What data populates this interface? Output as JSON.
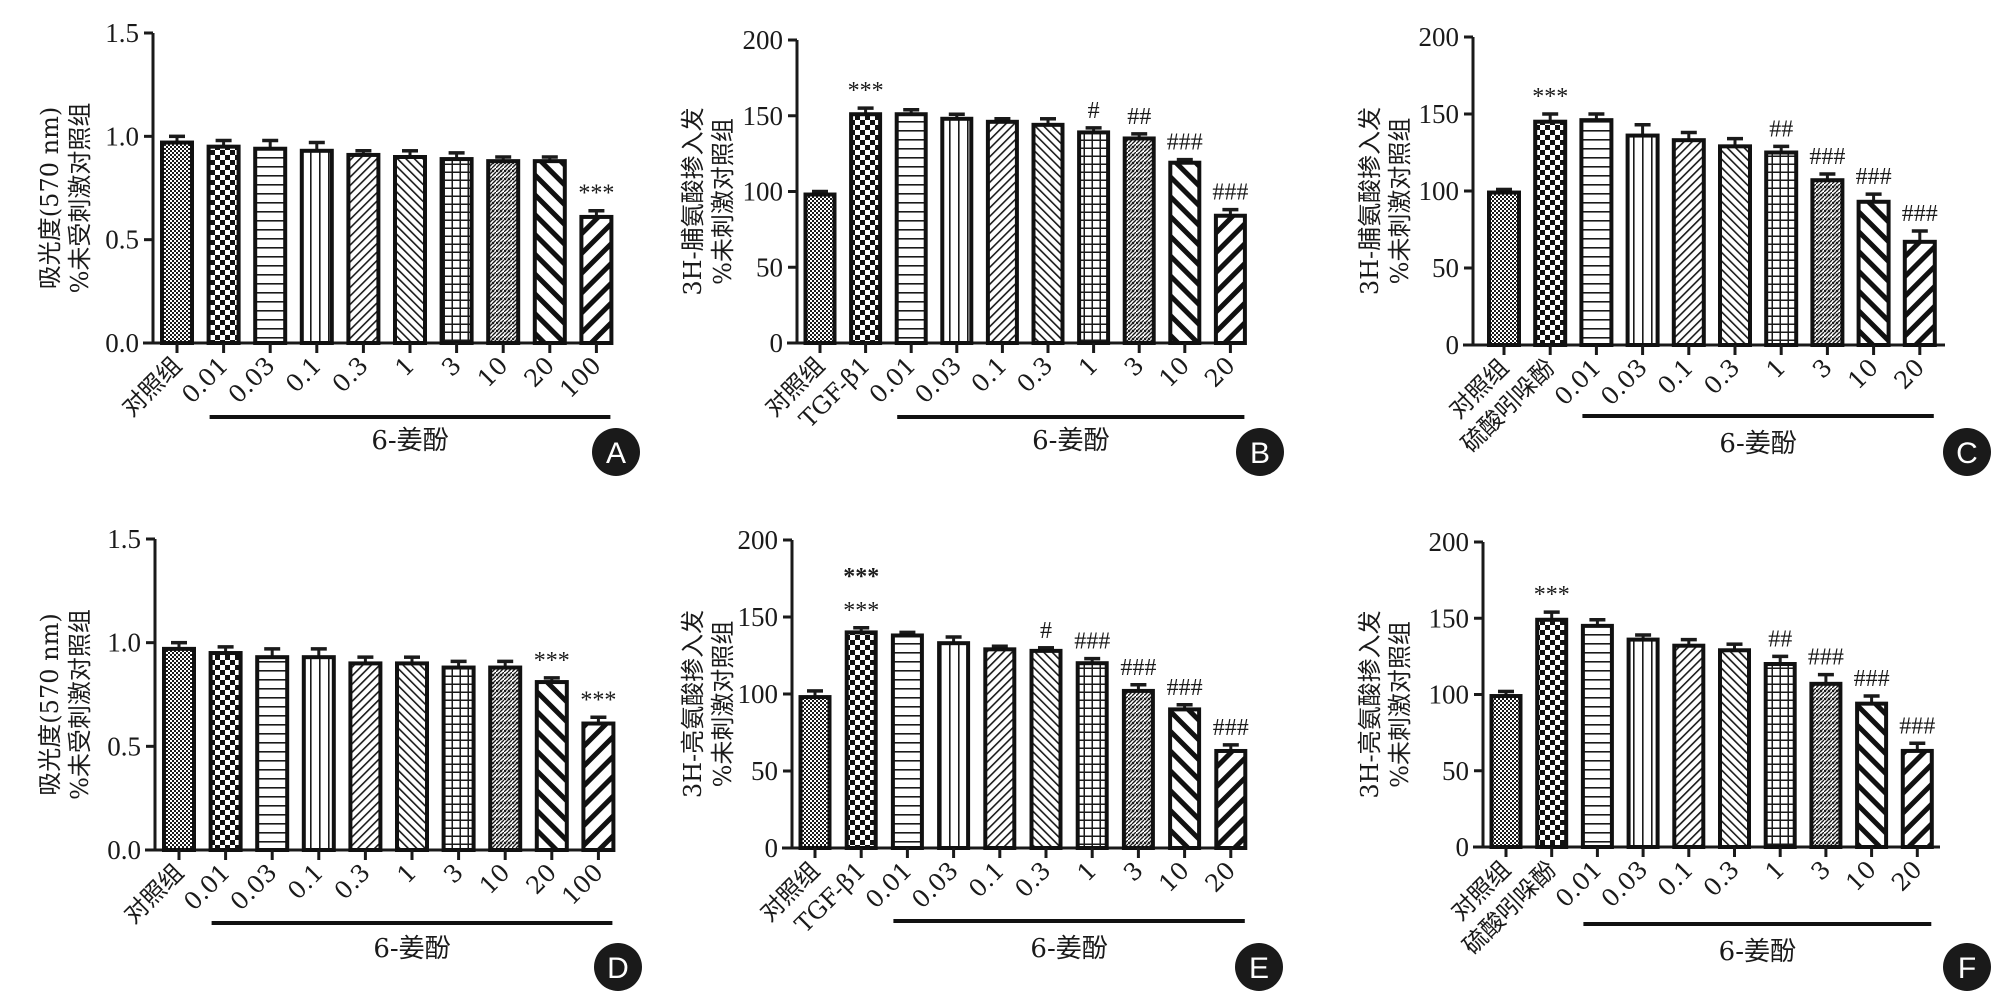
{
  "figure": {
    "group_label": "6-姜酚",
    "control_label": "对照组"
  },
  "chart_data": [
    {
      "panel": "A",
      "type": "bar",
      "ylabel_line1": "吸光度(570 nm)",
      "ylabel_line2": "%未受刺激对照组",
      "ylim": [
        0,
        1.5
      ],
      "yticks": [
        "0.0",
        "0.5",
        "1.0",
        "1.5"
      ],
      "ytick_values": [
        0,
        0.5,
        1.0,
        1.5
      ],
      "categories": [
        "对照组",
        "0.01",
        "0.03",
        "0.1",
        "0.3",
        "1",
        "3",
        "10",
        "20",
        "100"
      ],
      "values": [
        0.97,
        0.95,
        0.94,
        0.93,
        0.91,
        0.9,
        0.89,
        0.88,
        0.88,
        0.61
      ],
      "errors": [
        0.03,
        0.03,
        0.04,
        0.04,
        0.02,
        0.03,
        0.03,
        0.02,
        0.02,
        0.03
      ],
      "patterns": [
        "fine-check",
        "checker",
        "hlines",
        "vlines",
        "diag-fine",
        "diag-back-fine",
        "grid",
        "weave",
        "diag-back-bold",
        "diag-bold"
      ],
      "annotations": [
        "",
        "",
        "",
        "",
        "",
        "",
        "",
        "",
        "",
        "***"
      ],
      "group_start": 1,
      "group_label": "6-姜酚"
    },
    {
      "panel": "B",
      "type": "bar",
      "ylabel_line1": "3H-脯氨酸掺入发",
      "ylabel_line2": "%未刺激对照组",
      "ylim": [
        0,
        200
      ],
      "yticks": [
        "0",
        "50",
        "100",
        "150",
        "200"
      ],
      "ytick_values": [
        0,
        50,
        100,
        150,
        200
      ],
      "categories": [
        "对照组",
        "TGF-β1",
        "0.01",
        "0.03",
        "0.1",
        "0.3",
        "1",
        "3",
        "10",
        "20"
      ],
      "values": [
        98,
        151,
        151,
        148,
        146,
        144,
        139,
        135,
        119,
        84
      ],
      "errors": [
        2,
        4,
        3,
        3,
        2,
        4,
        3,
        3,
        2,
        4
      ],
      "patterns": [
        "fine-check",
        "checker",
        "hlines",
        "vlines",
        "diag-fine",
        "diag-back-fine",
        "grid",
        "weave",
        "diag-back-bold",
        "diag-bold"
      ],
      "annotations": [
        "",
        "***",
        "",
        "",
        "",
        "",
        "#",
        "##",
        "###",
        "###"
      ],
      "group_start": 2,
      "group_label": "6-姜酚"
    },
    {
      "panel": "C",
      "type": "bar",
      "ylabel_line1": "3H-脯氨酸掺入发",
      "ylabel_line2": "%未刺激对照组",
      "ylim": [
        0,
        200
      ],
      "yticks": [
        "0",
        "50",
        "100",
        "150",
        "200"
      ],
      "ytick_values": [
        0,
        50,
        100,
        150,
        200
      ],
      "categories": [
        "对照组",
        "硫酸吲哚酚",
        "0.01",
        "0.03",
        "0.1",
        "0.3",
        "1",
        "3",
        "10",
        "20"
      ],
      "values": [
        99,
        145,
        146,
        136,
        133,
        129,
        125,
        107,
        93,
        67
      ],
      "errors": [
        2,
        5,
        4,
        7,
        5,
        5,
        4,
        4,
        5,
        7
      ],
      "patterns": [
        "fine-check",
        "checker",
        "hlines",
        "vlines",
        "diag-fine",
        "diag-back-fine",
        "grid",
        "weave",
        "diag-back-bold",
        "diag-bold"
      ],
      "annotations": [
        "",
        "***",
        "",
        "",
        "",
        "",
        "##",
        "###",
        "###",
        "###"
      ],
      "group_start": 2,
      "group_label": "6-姜酚"
    },
    {
      "panel": "D",
      "type": "bar",
      "ylabel_line1": "吸光度(570 nm)",
      "ylabel_line2": "%未受刺激对照组",
      "ylim": [
        0,
        1.5
      ],
      "yticks": [
        "0.0",
        "0.5",
        "1.0",
        "1.5"
      ],
      "ytick_values": [
        0,
        0.5,
        1.0,
        1.5
      ],
      "categories": [
        "对照组",
        "0.01",
        "0.03",
        "0.1",
        "0.3",
        "1",
        "3",
        "10",
        "20",
        "100"
      ],
      "values": [
        0.97,
        0.95,
        0.93,
        0.93,
        0.9,
        0.9,
        0.88,
        0.88,
        0.81,
        0.61
      ],
      "errors": [
        0.03,
        0.03,
        0.04,
        0.04,
        0.03,
        0.03,
        0.03,
        0.03,
        0.02,
        0.03
      ],
      "patterns": [
        "fine-check",
        "checker",
        "hlines",
        "vlines",
        "diag-fine",
        "diag-back-fine",
        "grid",
        "weave",
        "diag-back-bold",
        "diag-bold"
      ],
      "annotations": [
        "",
        "",
        "",
        "",
        "",
        "",
        "",
        "",
        "***",
        "***"
      ],
      "group_start": 1,
      "group_label": "6-姜酚"
    },
    {
      "panel": "E",
      "type": "bar",
      "ylabel_line1": "3H-亮氨酸掺入发",
      "ylabel_line2": "%未刺激对照组",
      "ylim": [
        0,
        200
      ],
      "yticks": [
        "0",
        "50",
        "100",
        "150",
        "200"
      ],
      "ytick_values": [
        0,
        50,
        100,
        150,
        200
      ],
      "categories": [
        "对照组",
        "TGF-β1",
        "0.01",
        "0.03",
        "0.1",
        "0.3",
        "1",
        "3",
        "10",
        "20"
      ],
      "values": [
        98,
        140,
        138,
        133,
        129,
        128,
        120,
        102,
        90,
        63
      ],
      "errors": [
        4,
        3,
        2,
        4,
        2,
        2,
        3,
        4,
        3,
        4
      ],
      "patterns": [
        "fine-check",
        "checker",
        "hlines",
        "vlines",
        "diag-fine",
        "diag-back-fine",
        "grid",
        "weave",
        "diag-back-bold",
        "diag-bold"
      ],
      "annotations": [
        "",
        "***",
        "",
        "",
        "",
        "#",
        "###",
        "###",
        "###",
        "###"
      ],
      "extra_annotations": [
        {
          "index": 1,
          "text": "***",
          "level": 2
        }
      ],
      "group_start": 2,
      "group_label": "6-姜酚"
    },
    {
      "panel": "F",
      "type": "bar",
      "ylabel_line1": "3H-亮氨酸掺入发",
      "ylabel_line2": "%未刺激对照组",
      "ylim": [
        0,
        200
      ],
      "yticks": [
        "0",
        "50",
        "100",
        "150",
        "200"
      ],
      "ytick_values": [
        0,
        50,
        100,
        150,
        200
      ],
      "categories": [
        "对照组",
        "硫酸吲哚酚",
        "0.01",
        "0.03",
        "0.1",
        "0.3",
        "1",
        "3",
        "10",
        "20"
      ],
      "values": [
        99,
        149,
        145,
        136,
        132,
        129,
        120,
        107,
        94,
        63
      ],
      "errors": [
        3,
        5,
        4,
        3,
        4,
        4,
        5,
        6,
        5,
        5
      ],
      "patterns": [
        "fine-check",
        "checker",
        "hlines",
        "vlines",
        "diag-fine",
        "diag-back-fine",
        "grid",
        "weave",
        "diag-back-bold",
        "diag-bold"
      ],
      "annotations": [
        "",
        "***",
        "",
        "",
        "",
        "",
        "##",
        "###",
        "###",
        "###"
      ],
      "group_start": 2,
      "group_label": "6-姜酚"
    }
  ]
}
